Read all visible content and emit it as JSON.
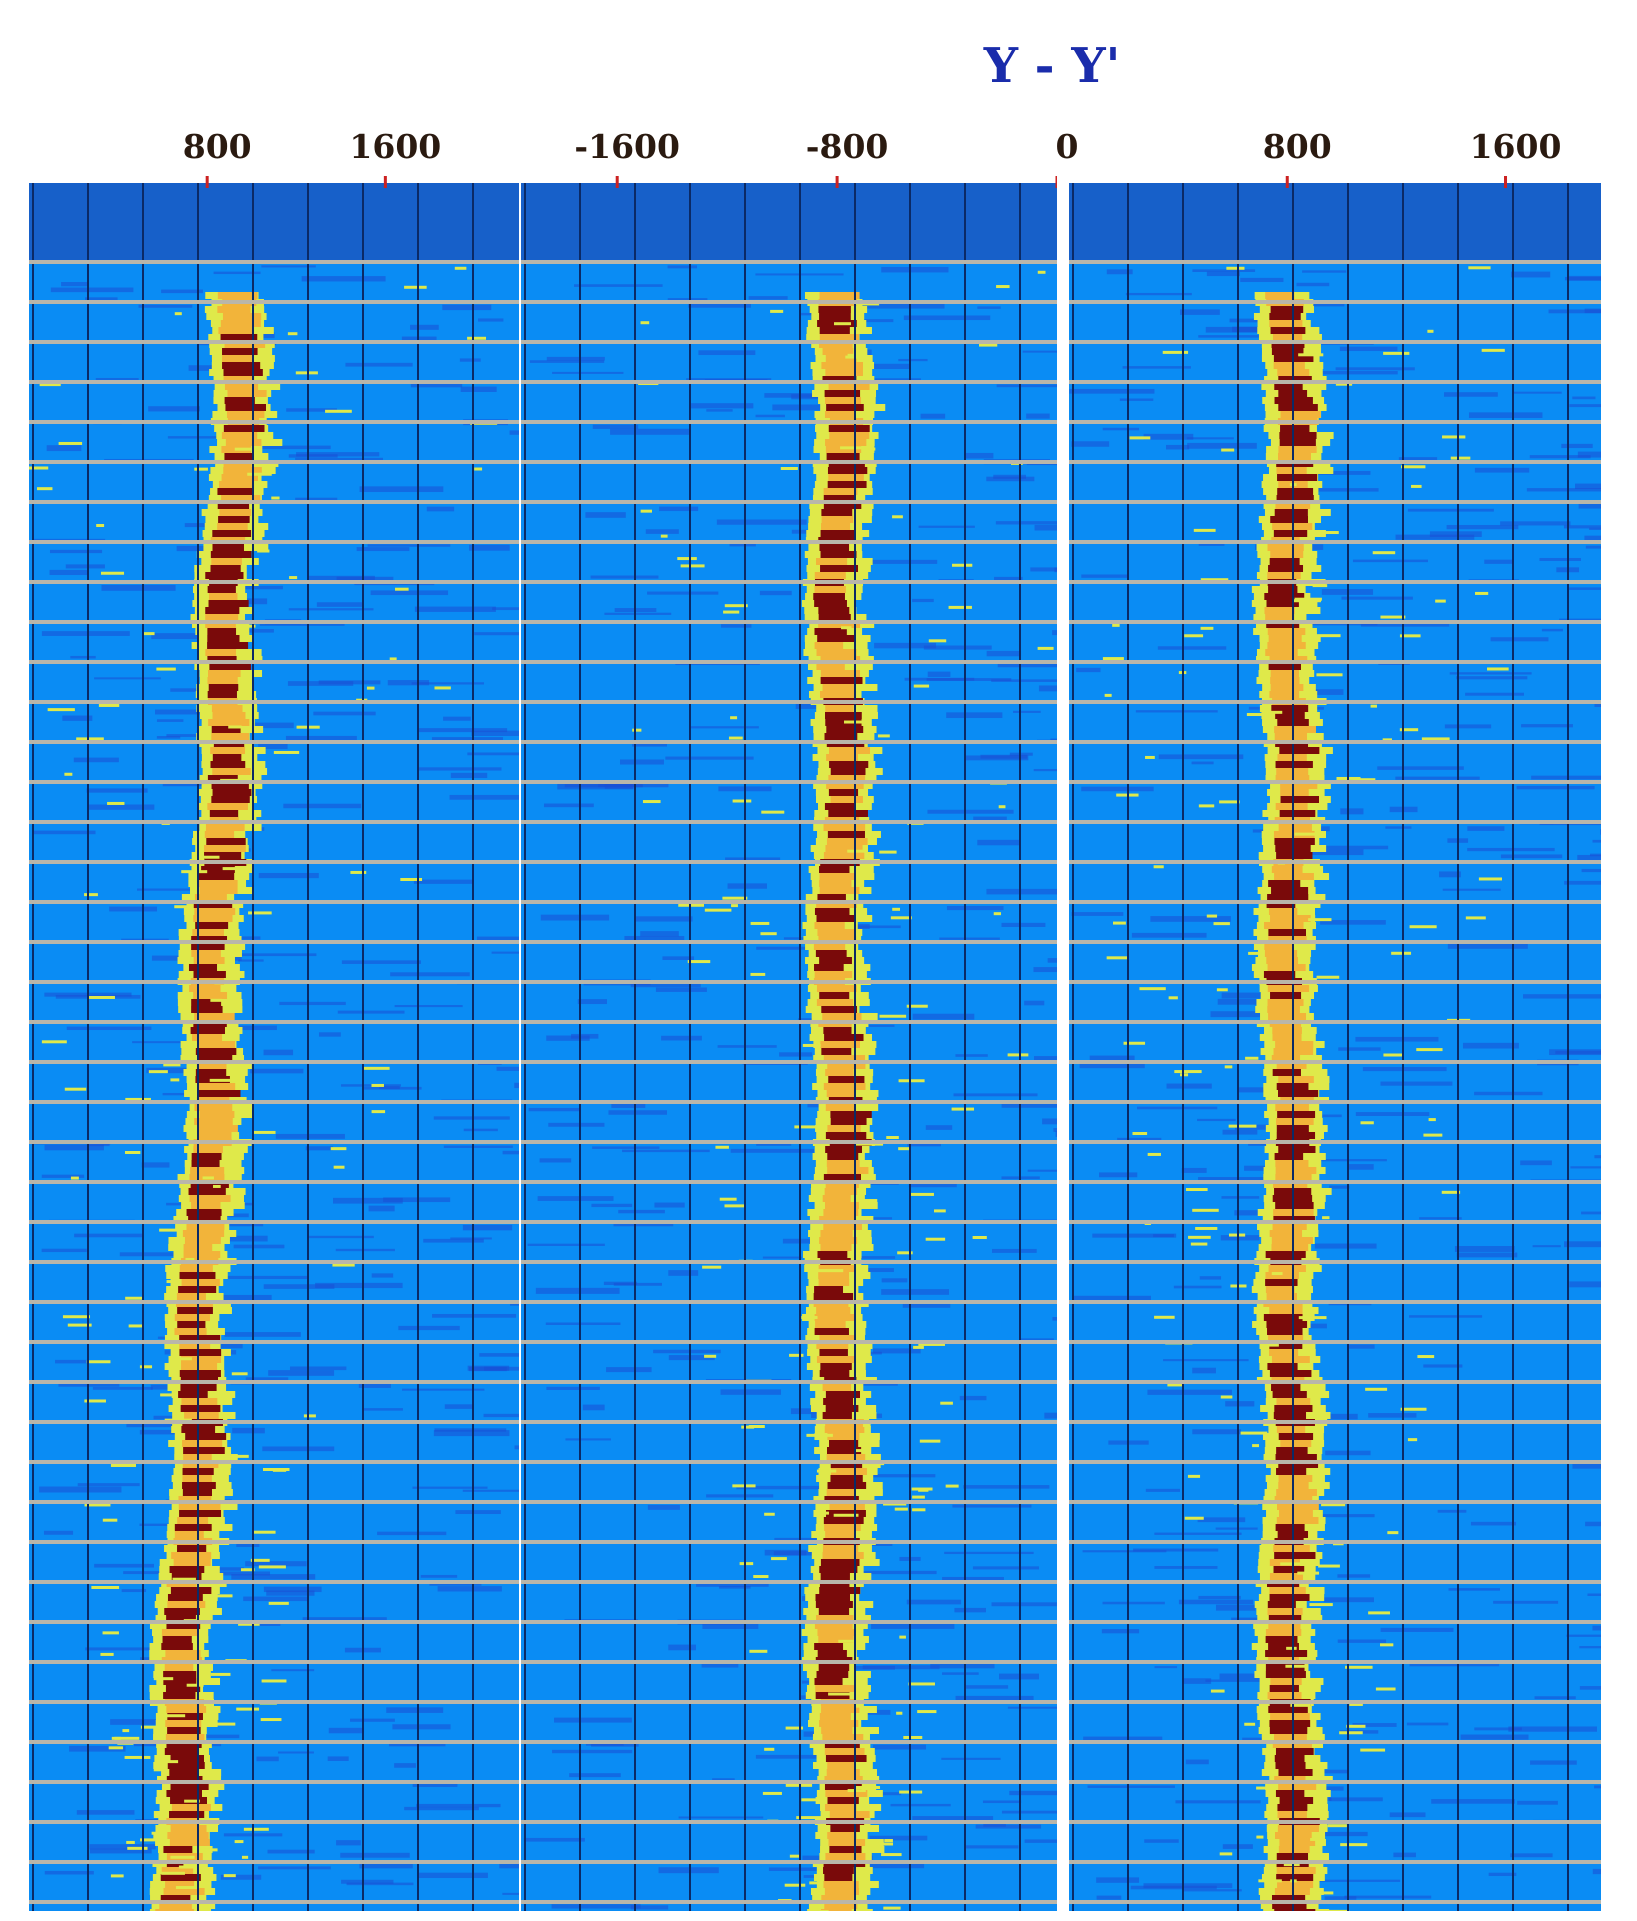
{
  "chart_data": [
    {
      "type": "heatmap",
      "title": "",
      "xlabel": "",
      "ylabel": "",
      "xlim": [
        0,
        2200
      ],
      "x_tick_labels": [
        "800",
        "1600"
      ],
      "x_ticks": [
        800,
        1600
      ],
      "ridge": {
        "x_top": 950,
        "x_bottom": 650
      },
      "grid": true,
      "colormap": [
        "#1a4fd6",
        "#0a8cf4",
        "#dfe94a",
        "#f2b43a",
        "#7a0a0a"
      ]
    },
    {
      "type": "heatmap",
      "title": "Y - Y'",
      "xlabel": "",
      "ylabel": "",
      "xlim": [
        -1950,
        0
      ],
      "x_tick_labels": [
        "-1600",
        "-800",
        "0"
      ],
      "x_ticks": [
        -1600,
        -800,
        0
      ],
      "ridge": {
        "x_top": -800,
        "x_bottom": -800
      },
      "grid": true,
      "colormap": [
        "#1a4fd6",
        "#0a8cf4",
        "#dfe94a",
        "#f2b43a",
        "#7a0a0a"
      ]
    },
    {
      "type": "heatmap",
      "title": "",
      "xlabel": "",
      "ylabel": "",
      "xlim": [
        0,
        1950
      ],
      "x_tick_labels": [
        "800",
        "1600"
      ],
      "x_ticks": [
        800,
        1600
      ],
      "ridge": {
        "x_top": 800,
        "x_bottom": 800
      },
      "grid": true,
      "colormap": [
        "#1a4fd6",
        "#0a8cf4",
        "#dfe94a",
        "#f2b43a",
        "#7a0a0a"
      ]
    }
  ]
}
